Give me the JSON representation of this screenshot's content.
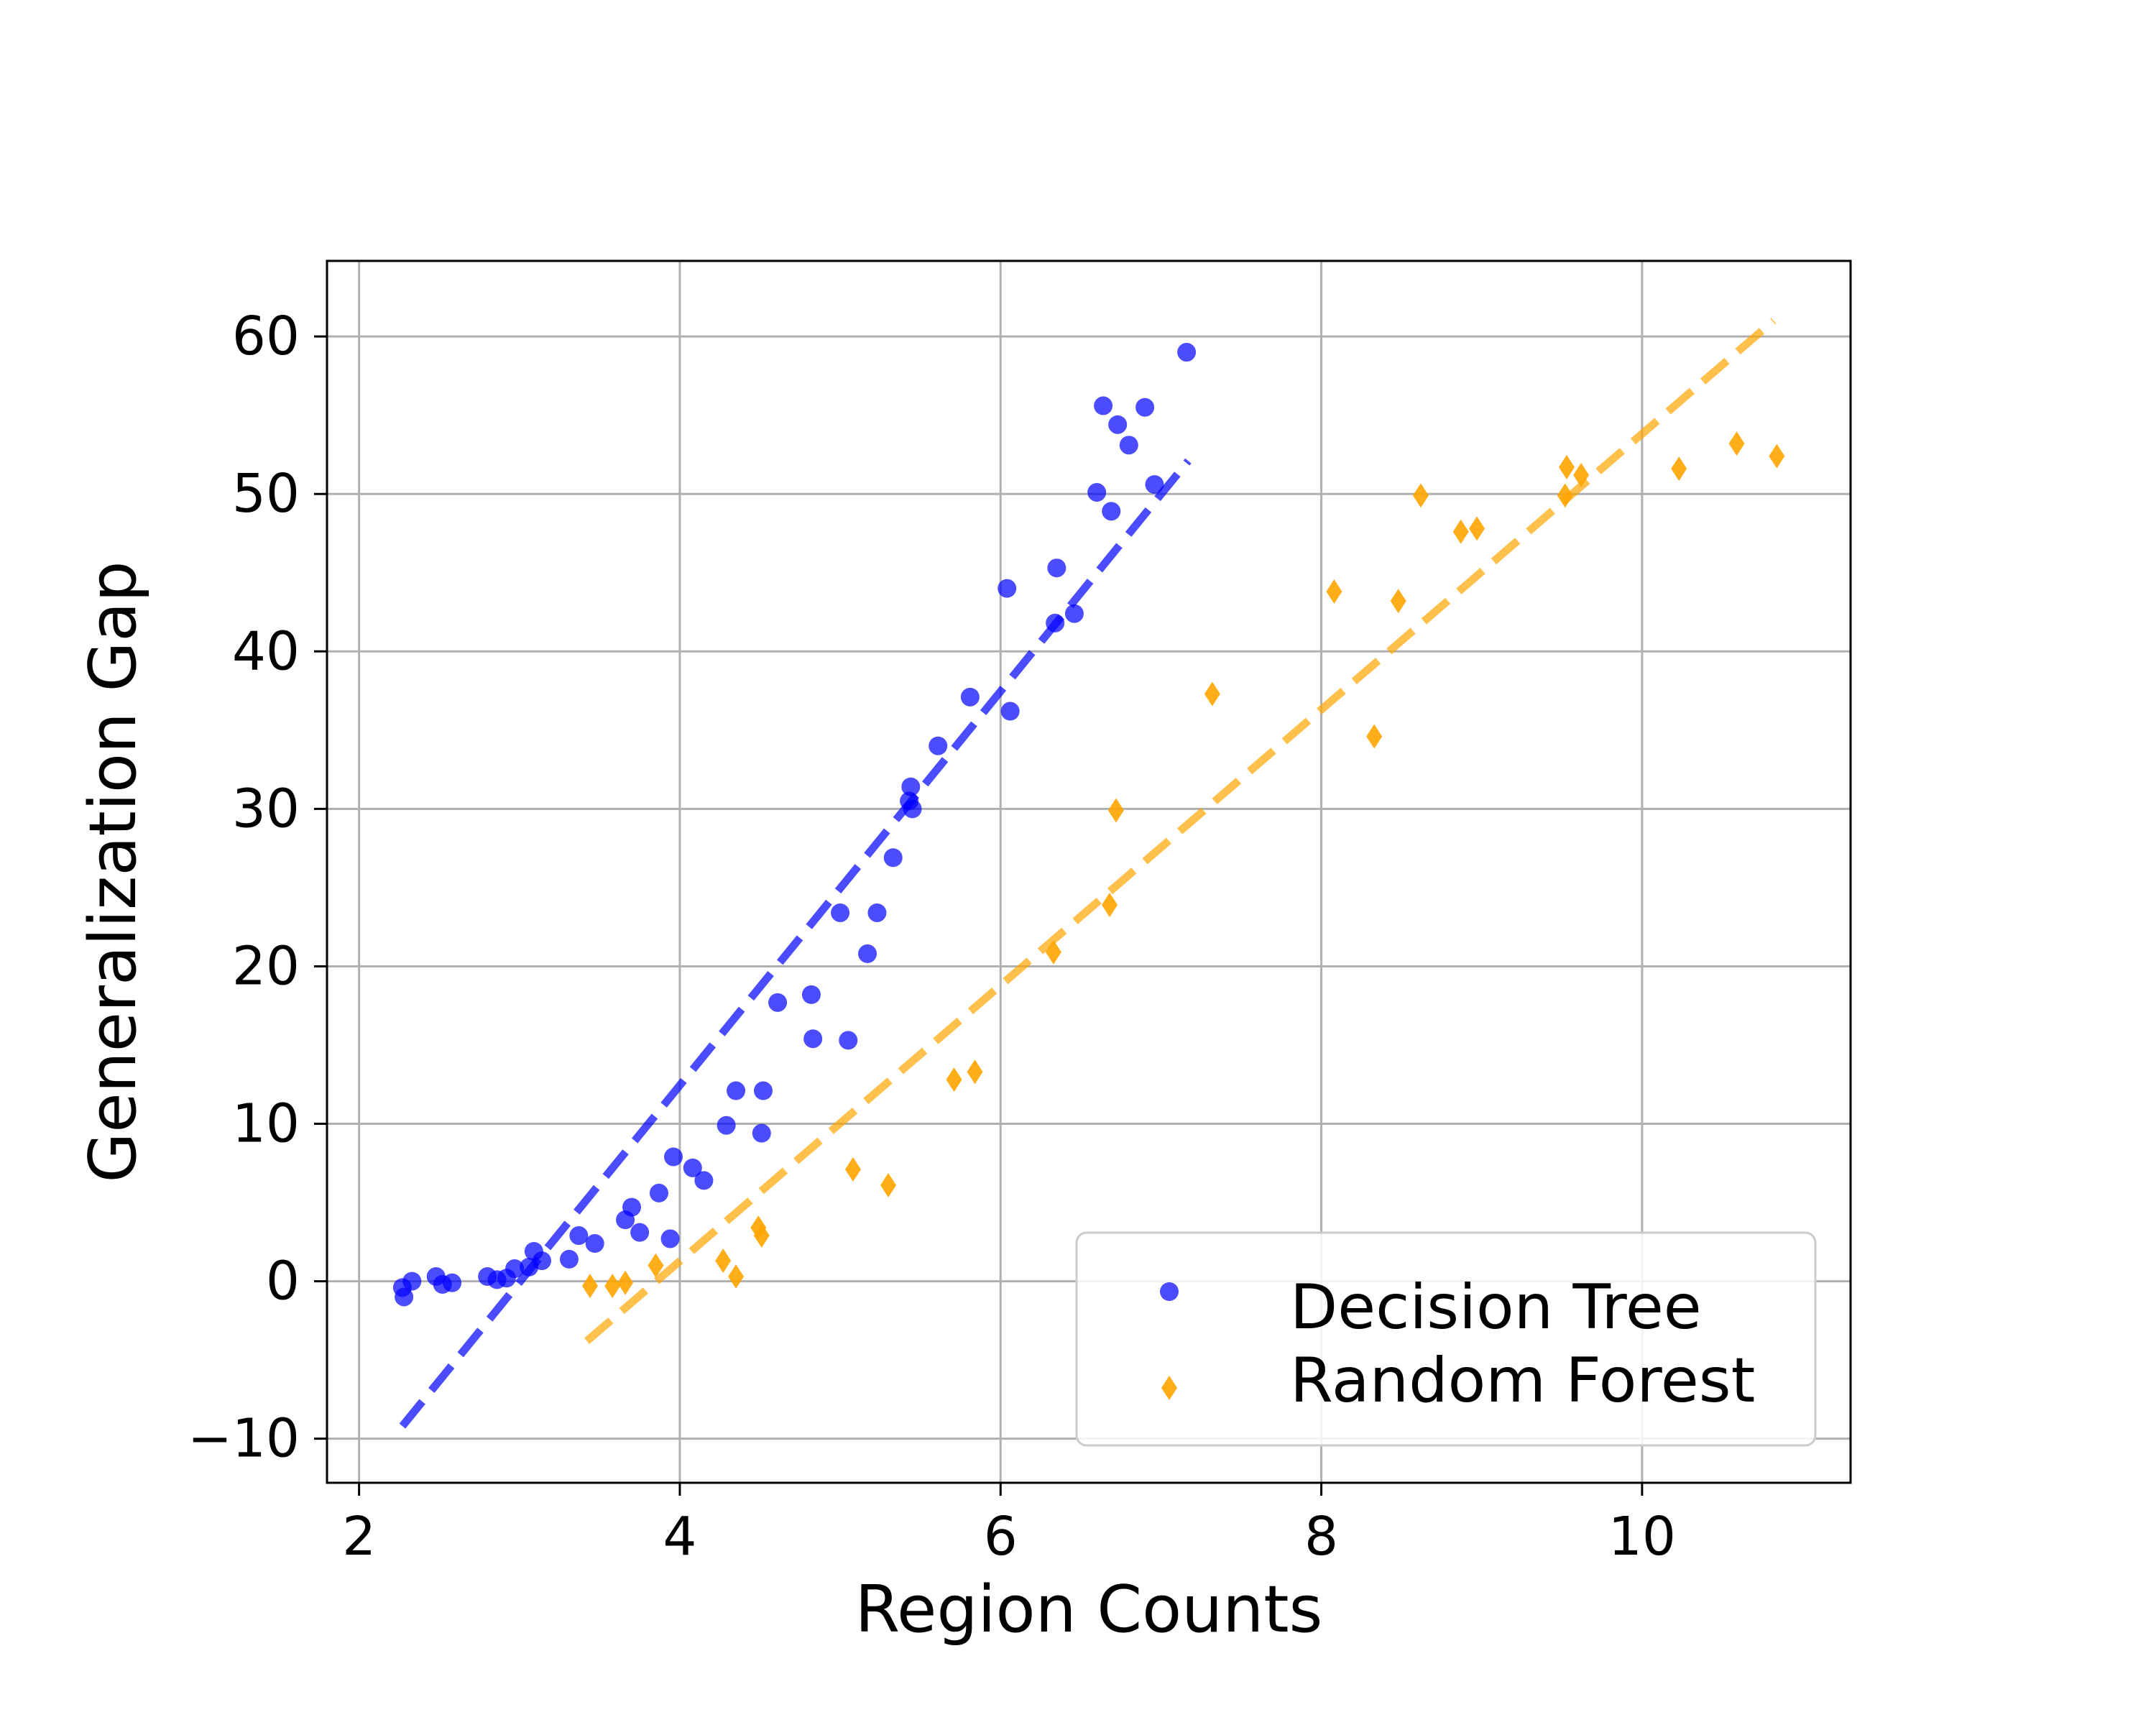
{
  "chart_data": {
    "type": "scatter",
    "xlabel": "Region Counts",
    "ylabel": "Generalization Gap",
    "xlim": [
      1.8,
      11.3
    ],
    "ylim": [
      -12.8,
      64.8
    ],
    "x_ticks": [
      2,
      4,
      6,
      8,
      10
    ],
    "y_ticks": [
      -10,
      0,
      10,
      20,
      30,
      40,
      50,
      60
    ],
    "x_tick_labels": [
      "2",
      "4",
      "6",
      "8",
      "10"
    ],
    "y_tick_labels": [
      "−10",
      "0",
      "10",
      "20",
      "30",
      "40",
      "50",
      "60"
    ],
    "grid": true,
    "legend_position": "bottom-right",
    "series": [
      {
        "name": "Decision Tree",
        "color": "#0000ff",
        "marker": "circle",
        "points": [
          [
            2.27,
            -0.4
          ],
          [
            2.28,
            -1.0
          ],
          [
            2.33,
            0.0
          ],
          [
            2.48,
            0.3
          ],
          [
            2.52,
            -0.2
          ],
          [
            2.58,
            -0.1
          ],
          [
            2.8,
            0.3
          ],
          [
            2.86,
            0.1
          ],
          [
            2.92,
            0.2
          ],
          [
            2.97,
            0.8
          ],
          [
            3.06,
            0.9
          ],
          [
            3.09,
            1.9
          ],
          [
            3.14,
            1.3
          ],
          [
            3.31,
            1.4
          ],
          [
            3.37,
            2.9
          ],
          [
            3.47,
            2.4
          ],
          [
            3.66,
            3.9
          ],
          [
            3.7,
            4.7
          ],
          [
            3.75,
            3.1
          ],
          [
            3.87,
            5.6
          ],
          [
            3.94,
            2.7
          ],
          [
            3.96,
            7.9
          ],
          [
            4.08,
            7.2
          ],
          [
            4.15,
            6.4
          ],
          [
            4.29,
            9.9
          ],
          [
            4.35,
            12.1
          ],
          [
            4.51,
            9.4
          ],
          [
            4.52,
            12.1
          ],
          [
            4.61,
            17.7
          ],
          [
            4.82,
            18.2
          ],
          [
            4.83,
            15.4
          ],
          [
            5.0,
            23.4
          ],
          [
            5.05,
            15.3
          ],
          [
            5.17,
            20.8
          ],
          [
            5.23,
            23.4
          ],
          [
            5.33,
            26.9
          ],
          [
            5.43,
            30.5
          ],
          [
            5.44,
            31.4
          ],
          [
            5.45,
            30.0
          ],
          [
            5.61,
            34.0
          ],
          [
            5.81,
            37.1
          ],
          [
            6.04,
            44.0
          ],
          [
            6.06,
            36.2
          ],
          [
            6.34,
            41.8
          ],
          [
            6.35,
            45.3
          ],
          [
            6.46,
            42.4
          ],
          [
            6.6,
            50.1
          ],
          [
            6.64,
            55.6
          ],
          [
            6.69,
            48.9
          ],
          [
            6.73,
            54.4
          ],
          [
            6.8,
            53.1
          ],
          [
            6.9,
            55.5
          ],
          [
            6.96,
            50.6
          ],
          [
            7.16,
            59.0
          ]
        ],
        "trend": {
          "x": [
            2.27,
            7.17
          ],
          "y": [
            -9.2,
            52.1
          ]
        }
      },
      {
        "name": "Random Forest",
        "color": "#ffa500",
        "marker": "diamond",
        "points": [
          [
            3.44,
            -0.3
          ],
          [
            3.58,
            -0.3
          ],
          [
            3.66,
            -0.1
          ],
          [
            3.85,
            1.0
          ],
          [
            4.27,
            1.3
          ],
          [
            4.35,
            0.3
          ],
          [
            4.49,
            3.4
          ],
          [
            4.51,
            2.9
          ],
          [
            5.08,
            7.1
          ],
          [
            5.3,
            6.1
          ],
          [
            5.71,
            12.8
          ],
          [
            5.84,
            13.3
          ],
          [
            6.33,
            20.9
          ],
          [
            6.68,
            23.9
          ],
          [
            6.72,
            29.9
          ],
          [
            7.32,
            37.3
          ],
          [
            8.08,
            43.8
          ],
          [
            8.33,
            34.6
          ],
          [
            8.48,
            43.2
          ],
          [
            8.62,
            49.9
          ],
          [
            8.87,
            47.6
          ],
          [
            8.97,
            47.8
          ],
          [
            9.52,
            49.9
          ],
          [
            9.53,
            51.7
          ],
          [
            9.62,
            51.2
          ],
          [
            10.23,
            51.6
          ],
          [
            10.59,
            53.2
          ],
          [
            10.84,
            52.4
          ]
        ],
        "trend": {
          "x": [
            3.42,
            10.82
          ],
          "y": [
            -3.8,
            61.0
          ]
        }
      }
    ]
  }
}
